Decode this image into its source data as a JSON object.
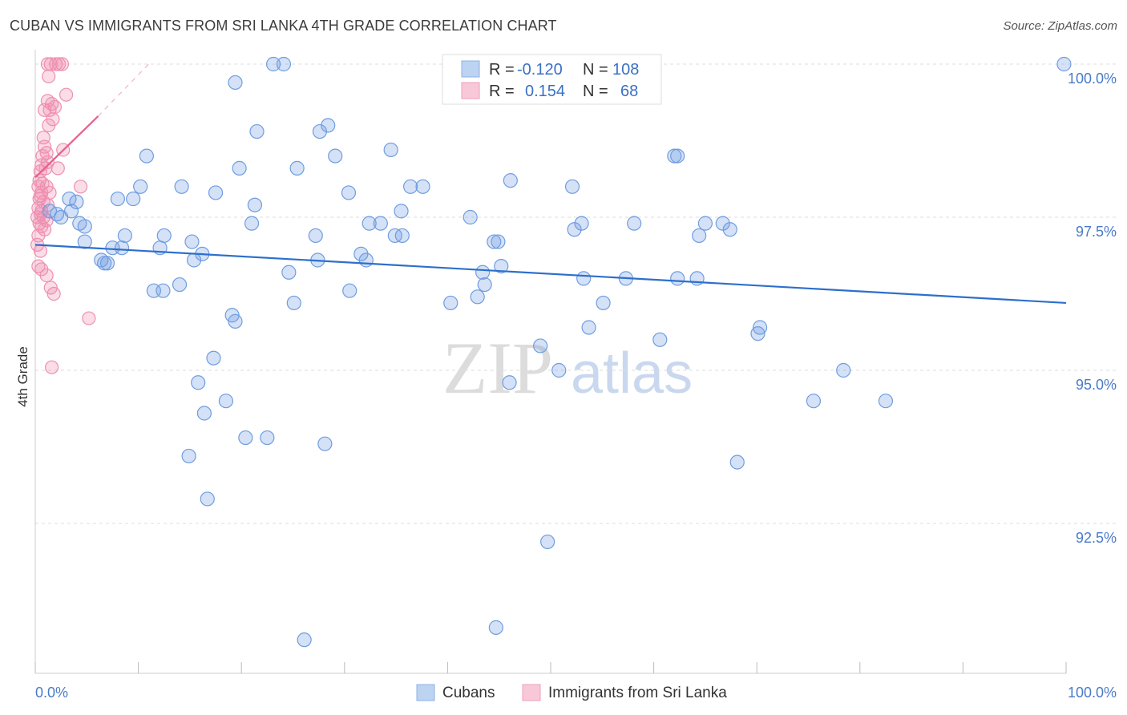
{
  "header": {
    "title": "CUBAN VS IMMIGRANTS FROM SRI LANKA 4TH GRADE CORRELATION CHART",
    "source": "Source: ZipAtlas.com"
  },
  "watermark": {
    "zip": "ZIP",
    "atlas": "atlas"
  },
  "legend": {
    "r_label": "R =",
    "n_label": "N =",
    "cubans": {
      "r": "-0.120",
      "n": "108"
    },
    "srilanka": {
      "r": "0.154",
      "n": "68"
    }
  },
  "bottom_legend": {
    "cubans": "Cubans",
    "srilanka": "Immigrants from Sri Lanka"
  },
  "chart_data": {
    "type": "scatter",
    "title": "CUBAN VS IMMIGRANTS FROM SRI LANKA 4TH GRADE CORRELATION CHART",
    "xlabel": "",
    "ylabel": "4th Grade",
    "xlim": [
      0,
      100
    ],
    "ylim": [
      90.2,
      100.2
    ],
    "x_tick_labels": [
      "0.0%",
      "100.0%"
    ],
    "y_ticks": [
      {
        "value": 100.0,
        "label": "100.0%"
      },
      {
        "value": 97.5,
        "label": "97.5%"
      },
      {
        "value": 95.0,
        "label": "95.0%"
      },
      {
        "value": 92.5,
        "label": "92.5%"
      }
    ],
    "colors": {
      "cubans": "#6f9de0",
      "srilanka": "#ef8fb0",
      "cubans_line": "#2d6fcc",
      "srilanka_line": "#e8608c"
    },
    "series": [
      {
        "name": "Cubans",
        "trend": {
          "x": [
            0,
            100
          ],
          "y": [
            97.05,
            96.1
          ]
        },
        "points": [
          [
            23.1,
            100.0
          ],
          [
            24.1,
            100.0
          ],
          [
            99.8,
            100.0
          ],
          [
            19.4,
            99.7
          ],
          [
            28.4,
            99.0
          ],
          [
            27.6,
            98.9
          ],
          [
            21.5,
            98.9
          ],
          [
            34.5,
            98.6
          ],
          [
            10.8,
            98.5
          ],
          [
            29.1,
            98.5
          ],
          [
            62.0,
            98.5
          ],
          [
            62.3,
            98.5
          ],
          [
            19.8,
            98.3
          ],
          [
            25.4,
            98.3
          ],
          [
            46.1,
            98.1
          ],
          [
            36.4,
            98.0
          ],
          [
            37.6,
            98.0
          ],
          [
            52.1,
            98.0
          ],
          [
            14.2,
            98.0
          ],
          [
            10.2,
            98.0
          ],
          [
            17.5,
            97.9
          ],
          [
            30.4,
            97.9
          ],
          [
            8.0,
            97.8
          ],
          [
            9.5,
            97.8
          ],
          [
            3.3,
            97.8
          ],
          [
            4.0,
            97.75
          ],
          [
            21.3,
            97.7
          ],
          [
            1.4,
            97.6
          ],
          [
            3.5,
            97.6
          ],
          [
            35.5,
            97.6
          ],
          [
            2.1,
            97.55
          ],
          [
            2.5,
            97.5
          ],
          [
            42.2,
            97.5
          ],
          [
            32.4,
            97.4
          ],
          [
            33.5,
            97.4
          ],
          [
            21.0,
            97.4
          ],
          [
            53.0,
            97.4
          ],
          [
            58.1,
            97.4
          ],
          [
            65.0,
            97.4
          ],
          [
            4.3,
            97.4
          ],
          [
            66.7,
            97.4
          ],
          [
            4.8,
            97.35
          ],
          [
            52.3,
            97.3
          ],
          [
            67.4,
            97.3
          ],
          [
            64.4,
            97.2
          ],
          [
            8.7,
            97.2
          ],
          [
            12.5,
            97.2
          ],
          [
            27.2,
            97.2
          ],
          [
            35.6,
            97.2
          ],
          [
            34.9,
            97.2
          ],
          [
            44.5,
            97.1
          ],
          [
            44.9,
            97.1
          ],
          [
            15.2,
            97.1
          ],
          [
            4.8,
            97.1
          ],
          [
            7.5,
            97.0
          ],
          [
            8.4,
            97.0
          ],
          [
            12.1,
            97.0
          ],
          [
            31.6,
            96.9
          ],
          [
            16.2,
            96.9
          ],
          [
            6.4,
            96.8
          ],
          [
            15.4,
            96.8
          ],
          [
            27.4,
            96.8
          ],
          [
            32.1,
            96.8
          ],
          [
            7.0,
            96.75
          ],
          [
            6.7,
            96.75
          ],
          [
            45.2,
            96.7
          ],
          [
            43.4,
            96.6
          ],
          [
            24.6,
            96.6
          ],
          [
            53.2,
            96.5
          ],
          [
            57.3,
            96.5
          ],
          [
            62.3,
            96.5
          ],
          [
            64.2,
            96.5
          ],
          [
            14.0,
            96.4
          ],
          [
            43.6,
            96.4
          ],
          [
            11.5,
            96.3
          ],
          [
            12.4,
            96.3
          ],
          [
            30.5,
            96.3
          ],
          [
            42.9,
            96.2
          ],
          [
            40.3,
            96.1
          ],
          [
            25.1,
            96.1
          ],
          [
            55.1,
            96.1
          ],
          [
            19.1,
            95.9
          ],
          [
            19.4,
            95.8
          ],
          [
            53.7,
            95.7
          ],
          [
            70.3,
            95.7
          ],
          [
            70.1,
            95.6
          ],
          [
            60.6,
            95.5
          ],
          [
            49.0,
            95.4
          ],
          [
            17.3,
            95.2
          ],
          [
            50.8,
            95.0
          ],
          [
            78.4,
            95.0
          ],
          [
            15.8,
            94.8
          ],
          [
            46.0,
            94.8
          ],
          [
            18.5,
            94.5
          ],
          [
            75.5,
            94.5
          ],
          [
            82.5,
            94.5
          ],
          [
            16.4,
            94.3
          ],
          [
            20.4,
            93.9
          ],
          [
            22.5,
            93.9
          ],
          [
            28.1,
            93.8
          ],
          [
            14.9,
            93.6
          ],
          [
            68.1,
            93.5
          ],
          [
            16.7,
            92.9
          ],
          [
            49.7,
            92.2
          ],
          [
            44.7,
            90.8
          ],
          [
            26.1,
            90.6
          ]
        ]
      },
      {
        "name": "Immigrants from Sri Lanka",
        "trend": {
          "x": [
            0,
            6.1
          ],
          "y": [
            98.15,
            99.15
          ]
        },
        "trend_dashed": {
          "x": [
            6.1,
            11.0
          ],
          "y": [
            99.15,
            100.0
          ]
        },
        "points": [
          [
            1.2,
            100.0
          ],
          [
            1.5,
            100.0
          ],
          [
            2.0,
            100.0
          ],
          [
            2.3,
            100.0
          ],
          [
            2.6,
            100.0
          ],
          [
            1.3,
            99.8
          ],
          [
            3.0,
            99.5
          ],
          [
            1.2,
            99.4
          ],
          [
            1.6,
            99.35
          ],
          [
            1.9,
            99.3
          ],
          [
            1.4,
            99.25
          ],
          [
            0.9,
            99.25
          ],
          [
            1.7,
            99.1
          ],
          [
            1.3,
            99.0
          ],
          [
            0.8,
            98.8
          ],
          [
            0.9,
            98.65
          ],
          [
            1.1,
            98.55
          ],
          [
            2.7,
            98.6
          ],
          [
            0.7,
            98.5
          ],
          [
            1.2,
            98.4
          ],
          [
            0.6,
            98.35
          ],
          [
            1.0,
            98.3
          ],
          [
            2.2,
            98.3
          ],
          [
            0.5,
            98.25
          ],
          [
            0.4,
            98.1
          ],
          [
            0.7,
            98.05
          ],
          [
            1.1,
            98.0
          ],
          [
            4.4,
            98.0
          ],
          [
            0.3,
            98.0
          ],
          [
            0.6,
            97.9
          ],
          [
            1.4,
            97.9
          ],
          [
            0.5,
            97.85
          ],
          [
            0.4,
            97.8
          ],
          [
            0.8,
            97.75
          ],
          [
            1.2,
            97.7
          ],
          [
            0.3,
            97.65
          ],
          [
            0.6,
            97.6
          ],
          [
            0.5,
            97.55
          ],
          [
            0.2,
            97.5
          ],
          [
            0.8,
            97.5
          ],
          [
            1.1,
            97.45
          ],
          [
            0.4,
            97.4
          ],
          [
            0.6,
            97.35
          ],
          [
            0.9,
            97.3
          ],
          [
            0.3,
            97.2
          ],
          [
            0.2,
            97.05
          ],
          [
            0.5,
            96.95
          ],
          [
            0.3,
            96.7
          ],
          [
            0.6,
            96.65
          ],
          [
            1.1,
            96.55
          ],
          [
            1.5,
            96.35
          ],
          [
            1.8,
            96.25
          ],
          [
            5.2,
            95.85
          ],
          [
            1.6,
            95.05
          ]
        ]
      }
    ]
  }
}
